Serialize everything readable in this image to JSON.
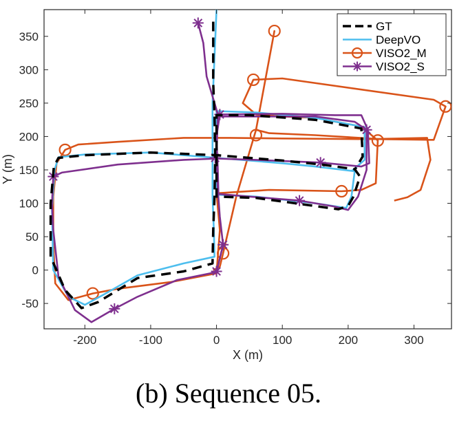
{
  "chart_data": {
    "type": "line",
    "xlabel": "X (m)",
    "ylabel": "Y (m)",
    "xlim": [
      -262,
      357
    ],
    "ylim": [
      -88,
      390
    ],
    "xticks": [
      -200,
      -100,
      0,
      100,
      200,
      300
    ],
    "yticks": [
      -50,
      0,
      50,
      100,
      150,
      200,
      250,
      300,
      350
    ],
    "grid": false,
    "legend_position": "top-right",
    "series": [
      {
        "name": "GT",
        "color": "#000000",
        "style": "dashed",
        "marker": "none",
        "points": [
          [
            -5,
            372
          ],
          [
            -5,
            280
          ],
          [
            -3,
            230
          ],
          [
            -2,
            170
          ],
          [
            -3,
            110
          ],
          [
            -5,
            60
          ],
          [
            -6,
            10
          ],
          [
            -50,
            -2
          ],
          [
            -120,
            -12
          ],
          [
            -180,
            -48
          ],
          [
            -205,
            -57
          ],
          [
            -230,
            -30
          ],
          [
            -252,
            20
          ],
          [
            -252,
            100
          ],
          [
            -247,
            155
          ],
          [
            -240,
            168
          ],
          [
            -200,
            172
          ],
          [
            -100,
            176
          ],
          [
            0,
            172
          ],
          [
            100,
            164
          ],
          [
            160,
            158
          ],
          [
            210,
            151
          ],
          [
            218,
            140
          ],
          [
            208,
            110
          ],
          [
            200,
            96
          ],
          [
            185,
            91
          ],
          [
            120,
            100
          ],
          [
            60,
            108
          ],
          [
            0,
            110
          ],
          [
            0,
            170
          ],
          [
            0,
            232
          ],
          [
            50,
            232
          ],
          [
            150,
            225
          ],
          [
            220,
            212
          ],
          [
            222,
            170
          ],
          [
            210,
            150
          ]
        ]
      },
      {
        "name": "DeepVO",
        "color": "#4dbeee",
        "style": "solid",
        "marker": "none",
        "points": [
          [
            0,
            390
          ],
          [
            -3,
            320
          ],
          [
            -6,
            250
          ],
          [
            -6,
            170
          ],
          [
            -6,
            110
          ],
          [
            -4,
            60
          ],
          [
            -3,
            20
          ],
          [
            -50,
            10
          ],
          [
            -120,
            -8
          ],
          [
            -170,
            -36
          ],
          [
            -200,
            -52
          ],
          [
            -225,
            -40
          ],
          [
            -248,
            0
          ],
          [
            -250,
            90
          ],
          [
            -246,
            150
          ],
          [
            -240,
            169
          ],
          [
            -200,
            173
          ],
          [
            -100,
            176
          ],
          [
            0,
            168
          ],
          [
            100,
            160
          ],
          [
            150,
            155
          ],
          [
            210,
            148
          ],
          [
            205,
            110
          ],
          [
            197,
            93
          ],
          [
            150,
            100
          ],
          [
            60,
            110
          ],
          [
            0,
            113
          ],
          [
            0,
            170
          ],
          [
            0,
            238
          ],
          [
            60,
            236
          ],
          [
            150,
            228
          ],
          [
            225,
            214
          ],
          [
            225,
            165
          ],
          [
            205,
            148
          ]
        ]
      },
      {
        "name": "VISO2_M",
        "color": "#d95319",
        "style": "solid",
        "marker": "circle",
        "points": [
          [
            -5,
            0
          ],
          [
            5,
            5
          ],
          [
            10,
            25
          ],
          [
            30,
            110
          ],
          [
            60,
            210
          ],
          [
            88,
            358
          ],
          [
            60,
            210
          ],
          [
            80,
            205
          ],
          [
            150,
            202
          ],
          [
            250,
            196
          ],
          [
            330,
            195
          ],
          [
            348,
            245
          ],
          [
            330,
            255
          ],
          [
            100,
            287
          ],
          [
            56,
            285
          ],
          [
            40,
            250
          ],
          [
            60,
            233
          ],
          [
            100,
            230
          ],
          [
            150,
            228
          ],
          [
            220,
            215
          ],
          [
            245,
            194
          ],
          [
            242,
            130
          ],
          [
            220,
            120
          ],
          [
            190,
            118
          ],
          [
            80,
            120
          ],
          [
            0,
            115
          ],
          [
            5,
            60
          ],
          [
            0,
            -5
          ],
          [
            -70,
            -18
          ],
          [
            -150,
            -28
          ],
          [
            -188,
            -35
          ],
          [
            -225,
            -45
          ],
          [
            -245,
            -20
          ],
          [
            -248,
            40
          ],
          [
            -248,
            110
          ],
          [
            -243,
            160
          ],
          [
            -230,
            180
          ],
          [
            -210,
            188
          ],
          [
            -150,
            192
          ],
          [
            -50,
            198
          ],
          [
            20,
            198
          ],
          [
            100,
            197
          ],
          [
            230,
            196
          ],
          [
            320,
            198
          ],
          [
            325,
            165
          ],
          [
            310,
            120
          ],
          [
            290,
            109
          ],
          [
            270,
            104
          ]
        ]
      },
      {
        "name": "VISO2_S",
        "color": "#7e2f8e",
        "style": "solid",
        "marker": "star",
        "points": [
          [
            -28,
            370
          ],
          [
            -20,
            340
          ],
          [
            -15,
            290
          ],
          [
            0,
            240
          ],
          [
            2,
            232
          ],
          [
            0,
            170
          ],
          [
            2,
            120
          ],
          [
            5,
            80
          ],
          [
            10,
            38
          ],
          [
            0,
            -3
          ],
          [
            -60,
            -15
          ],
          [
            -120,
            -40
          ],
          [
            -155,
            -58
          ],
          [
            -190,
            -78
          ],
          [
            -215,
            -60
          ],
          [
            -240,
            -10
          ],
          [
            -248,
            60
          ],
          [
            -250,
            100
          ],
          [
            -248,
            140
          ],
          [
            -235,
            146
          ],
          [
            -150,
            158
          ],
          [
            -50,
            165
          ],
          [
            0,
            167
          ],
          [
            60,
            165
          ],
          [
            158,
            161
          ],
          [
            220,
            155
          ],
          [
            232,
            160
          ],
          [
            230,
            210
          ],
          [
            220,
            232
          ],
          [
            180,
            232
          ],
          [
            100,
            234
          ],
          [
            5,
            233
          ],
          [
            0,
            200
          ],
          [
            2,
            150
          ],
          [
            3,
            114
          ],
          [
            50,
            110
          ],
          [
            126,
            104
          ],
          [
            180,
            95
          ],
          [
            200,
            90
          ],
          [
            215,
            110
          ],
          [
            228,
            150
          ],
          [
            228,
            210
          ],
          [
            210,
            222
          ],
          [
            150,
            230
          ],
          [
            50,
            230
          ],
          [
            5,
            230
          ]
        ]
      }
    ],
    "marker_indices": {
      "VISO2_M": [
        [
          10,
          25
        ],
        [
          88,
          358
        ],
        [
          60,
          202
        ],
        [
          56,
          285
        ],
        [
          348,
          245
        ],
        [
          245,
          194
        ],
        [
          190,
          118
        ],
        [
          -188,
          -35
        ],
        [
          -230,
          180
        ]
      ],
      "VISO2_S": [
        [
          -28,
          370
        ],
        [
          5,
          233
        ],
        [
          -2,
          168
        ],
        [
          10,
          38
        ],
        [
          0,
          -2
        ],
        [
          -155,
          -58
        ],
        [
          -248,
          140
        ],
        [
          158,
          161
        ],
        [
          126,
          104
        ],
        [
          228,
          210
        ]
      ]
    }
  },
  "caption": "(b)  Sequence 05."
}
